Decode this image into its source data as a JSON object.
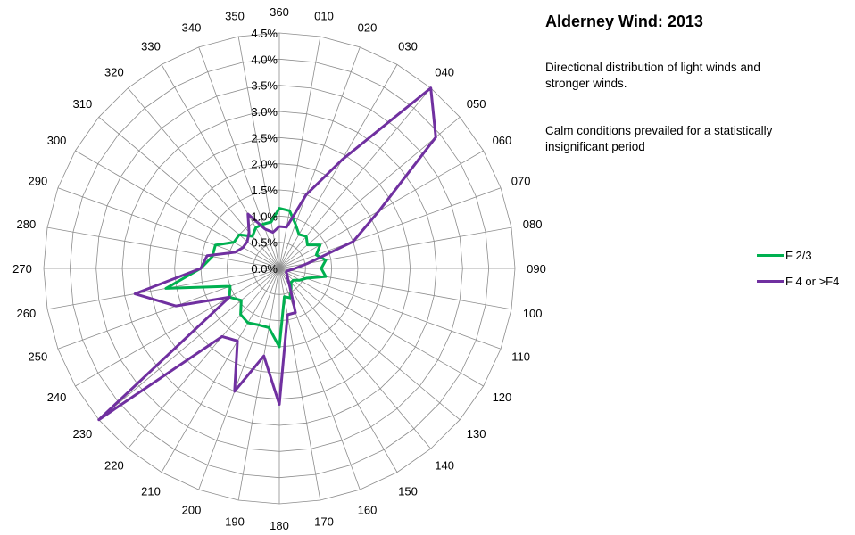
{
  "title": "Alderney Wind: 2013",
  "notes": [
    "Directional distribution of light winds and stronger winds.",
    "Calm conditions prevailed for a statistically insignificant period"
  ],
  "chart_data": {
    "type": "radar",
    "title": "Alderney Wind: 2013",
    "categories": [
      "360",
      "010",
      "020",
      "030",
      "040",
      "050",
      "060",
      "070",
      "080",
      "090",
      "100",
      "110",
      "120",
      "130",
      "140",
      "150",
      "160",
      "170",
      "180",
      "190",
      "200",
      "210",
      "220",
      "230",
      "240",
      "250",
      "260",
      "270",
      "280",
      "290",
      "300",
      "310",
      "320",
      "330",
      "340",
      "350"
    ],
    "radial_ticks": [
      "0.0%",
      "0.5%",
      "1.0%",
      "1.5%",
      "2.0%",
      "2.5%",
      "3.0%",
      "3.5%",
      "4.0%",
      "4.5%"
    ],
    "rlim": [
      0,
      4.5
    ],
    "legend_position": "right",
    "series": [
      {
        "name": "F 2/3",
        "color": "#00b050",
        "values": [
          1.15,
          1.12,
          0.9,
          0.75,
          0.8,
          0.7,
          0.9,
          0.75,
          0.9,
          0.8,
          0.9,
          0.55,
          0.45,
          0.35,
          0.35,
          0.45,
          0.6,
          0.55,
          1.5,
          1.15,
          1.15,
          1.2,
          1.15,
          0.95,
          1.1,
          1.0,
          2.2,
          1.5,
          1.3,
          1.3,
          1.0,
          1.0,
          0.8,
          0.9,
          0.9,
          0.9
        ]
      },
      {
        "name": "F 4 or >F4",
        "color": "#7030a0",
        "values": [
          0.8,
          0.8,
          1.5,
          2.4,
          4.5,
          3.9,
          2.2,
          1.5,
          0.55,
          0.3,
          0.2,
          0.15,
          0.15,
          0.2,
          0.25,
          0.4,
          0.9,
          0.9,
          2.6,
          1.7,
          2.5,
          1.6,
          1.7,
          4.5,
          1.1,
          2.1,
          2.8,
          1.5,
          1.4,
          0.9,
          0.8,
          0.8,
          0.9,
          1.2,
          0.8,
          0.7
        ]
      }
    ]
  }
}
